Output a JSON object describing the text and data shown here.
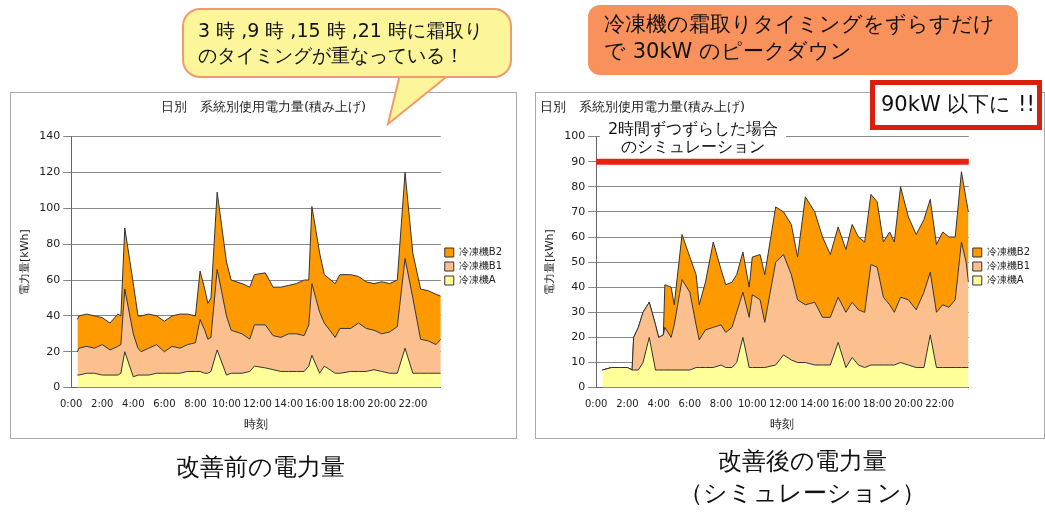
{
  "chart_data": [
    {
      "type": "area",
      "title": "日別　系統別使用電力量(積み上げ)",
      "xlabel": "時刻",
      "ylabel": "電力量[kWh]",
      "stacked": true,
      "legend": "right",
      "grid": "y",
      "xlim": [
        0,
        23.8
      ],
      "xticks": [
        {
          "value": 0,
          "label": "0:00"
        },
        {
          "value": 2,
          "label": "2:00"
        },
        {
          "value": 4,
          "label": "4:00"
        },
        {
          "value": 6,
          "label": "6:00"
        },
        {
          "value": 8,
          "label": "8:00"
        },
        {
          "value": 10,
          "label": "10:00"
        },
        {
          "value": 12,
          "label": "12:00"
        },
        {
          "value": 14,
          "label": "14:00"
        },
        {
          "value": 16,
          "label": "16:00"
        },
        {
          "value": 18,
          "label": "18:00"
        },
        {
          "value": 20,
          "label": "20:00"
        },
        {
          "value": 22,
          "label": "22:00"
        }
      ],
      "ylim": [
        0,
        140
      ],
      "yticks": [
        0,
        20,
        40,
        60,
        80,
        100,
        120,
        140
      ],
      "x": [
        0.4,
        0.5,
        1,
        1.5,
        2,
        2.5,
        3,
        3.2,
        3.45,
        4,
        4.3,
        4.5,
        5,
        5.5,
        6,
        6.5,
        7,
        7.5,
        8,
        8.3,
        8.6,
        8.8,
        9,
        9.4,
        10,
        10.3,
        11,
        11.5,
        11.8,
        12.5,
        13,
        13.5,
        14,
        14.5,
        15,
        15.3,
        15.5,
        16,
        16.3,
        17,
        17.3,
        18,
        18.5,
        19,
        19.5,
        20,
        20.5,
        21,
        21.5,
        22,
        22.5,
        23,
        23.5,
        23.8
      ],
      "series": [
        {
          "name": "冷凍機A",
          "color": "#ffff99",
          "values": [
            7,
            7,
            8,
            8,
            7,
            7,
            7,
            8,
            20,
            6,
            7,
            7,
            7,
            8,
            8,
            8,
            8,
            9,
            9,
            9,
            8,
            8,
            9,
            21,
            7,
            8,
            8,
            9,
            12,
            11,
            10,
            9,
            9,
            9,
            9,
            12,
            18,
            8,
            12,
            8,
            8,
            9,
            9,
            9,
            10,
            9,
            8,
            8,
            22,
            8,
            8,
            8,
            8,
            8
          ]
        },
        {
          "name": "冷凍機B1",
          "color": "#fcc08f",
          "values": [
            13,
            15,
            15,
            14,
            17,
            14,
            16,
            16,
            35,
            24,
            15,
            13,
            15,
            16,
            12,
            15,
            14,
            15,
            16,
            29,
            24,
            19,
            19,
            45,
            33,
            24,
            22,
            18,
            23,
            24,
            19,
            19,
            21,
            21,
            20,
            23,
            40,
            34,
            24,
            20,
            25,
            24,
            27,
            24,
            22,
            21,
            23,
            26,
            50,
            42,
            19,
            18,
            16,
            19
          ]
        },
        {
          "name": "冷凍機B2",
          "color": "#ff9900",
          "values": [
            18,
            18,
            18,
            18,
            15,
            15,
            18,
            16,
            34,
            28,
            18,
            20,
            19,
            16,
            17,
            17,
            19,
            17,
            15,
            27,
            23,
            20,
            22,
            43,
            30,
            28,
            28,
            29,
            28,
            29,
            27,
            28,
            27,
            28,
            31,
            25,
            43,
            33,
            27,
            30,
            30,
            30,
            26,
            26,
            26,
            29,
            27,
            26,
            48,
            25,
            28,
            28,
            28,
            24
          ]
        }
      ],
      "annotations": [
        "3 時 ,9 時 ,15 時 ,21 時に霜取りのタイミングが重なっている！",
        "改善前の電力量"
      ]
    },
    {
      "type": "area",
      "title": "日別　系統別使用電力量(積み上げ)",
      "xlabel": "時刻",
      "ylabel": "電力量[kWh]",
      "stacked": true,
      "legend": "right",
      "grid": "y",
      "xlim": [
        0,
        23.87
      ],
      "xticks": [
        {
          "value": 0,
          "label": "0:00"
        },
        {
          "value": 2,
          "label": "2:00"
        },
        {
          "value": 4,
          "label": "4:00"
        },
        {
          "value": 6,
          "label": "6:00"
        },
        {
          "value": 8,
          "label": "8:00"
        },
        {
          "value": 10,
          "label": "10:00"
        },
        {
          "value": 12,
          "label": "12:00"
        },
        {
          "value": 14,
          "label": "14:00"
        },
        {
          "value": 16,
          "label": "16:00"
        },
        {
          "value": 18,
          "label": "18:00"
        },
        {
          "value": 20,
          "label": "20:00"
        },
        {
          "value": 22,
          "label": "22:00"
        }
      ],
      "ylim": [
        0,
        100
      ],
      "yticks": [
        0,
        10,
        20,
        30,
        40,
        50,
        60,
        70,
        80,
        90,
        100
      ],
      "x": [
        0.4,
        1,
        1.5,
        2,
        2.3,
        2.4,
        2.7,
        3,
        3.4,
        3.8,
        4,
        4.3,
        4.4,
        4.8,
        5,
        5.5,
        6,
        6.4,
        6.6,
        7,
        7.5,
        8,
        8.3,
        8.7,
        9,
        9.4,
        9.8,
        10,
        10.5,
        10.8,
        11.5,
        12,
        12.5,
        12.9,
        13.4,
        14,
        14.5,
        15,
        15.5,
        16,
        16.4,
        16.8,
        17.2,
        17.6,
        18,
        18.4,
        18.8,
        19.1,
        19.5,
        20,
        20.5,
        21,
        21.4,
        21.8,
        22.2,
        22.6,
        23,
        23.4,
        23.7,
        23.85
      ],
      "series": [
        {
          "name": "冷凍機A",
          "color": "#ffff99",
          "values": [
            7,
            8,
            8,
            8,
            7,
            7,
            7,
            10,
            20,
            7,
            7,
            7,
            7,
            7,
            7,
            7,
            7,
            8,
            8,
            8,
            8,
            9,
            8,
            8,
            10,
            20,
            8,
            8,
            8,
            8,
            9,
            13,
            11,
            10,
            10,
            9,
            9,
            9,
            18,
            8,
            12,
            9,
            8,
            9,
            9,
            9,
            9,
            9,
            10,
            9,
            8,
            8,
            21,
            8,
            8,
            8,
            8,
            8,
            8,
            8
          ]
        },
        {
          "name": "冷凍機B1",
          "color": "#fcc08f",
          "values": [
            0,
            0,
            0,
            0,
            0,
            13,
            17,
            20,
            14,
            18,
            13,
            14,
            17,
            13,
            18,
            36,
            31,
            17,
            11,
            15,
            16,
            16,
            14,
            16,
            20,
            18,
            20,
            29,
            27,
            18,
            41,
            40,
            34,
            25,
            23,
            25,
            19,
            19,
            18,
            22,
            22,
            22,
            22,
            40,
            39,
            27,
            24,
            21,
            26,
            26,
            23,
            30,
            25,
            22,
            25,
            24,
            27,
            50,
            42,
            34
          ]
        },
        {
          "name": "冷凍機B2",
          "color": "#ff9900",
          "values": [
            0,
            0,
            0,
            0,
            0,
            0,
            0,
            0,
            0,
            0,
            0,
            0,
            17,
            20,
            8,
            18,
            14,
            20,
            14,
            19,
            34,
            22,
            19,
            18,
            15,
            16,
            12,
            15,
            18,
            19,
            22,
            17,
            20,
            17,
            43,
            36,
            32,
            25,
            28,
            25,
            31,
            29,
            28,
            28,
            26,
            22,
            29,
            28,
            44,
            33,
            30,
            29,
            29,
            27,
            29,
            28,
            25,
            28,
            25,
            28
          ]
        }
      ],
      "ref_lines": [
        {
          "axis": "y",
          "value": 90,
          "color": "#e8220f"
        }
      ],
      "annotations": [
        "冷凍機の霜取りタイミングをずらすだけで 30kW のピークダウン",
        "90kW 以下に !!",
        "2時間ずつずらした場合のシミュレーション",
        "改善後の電力量",
        "（シミュレーション）"
      ]
    }
  ]
}
